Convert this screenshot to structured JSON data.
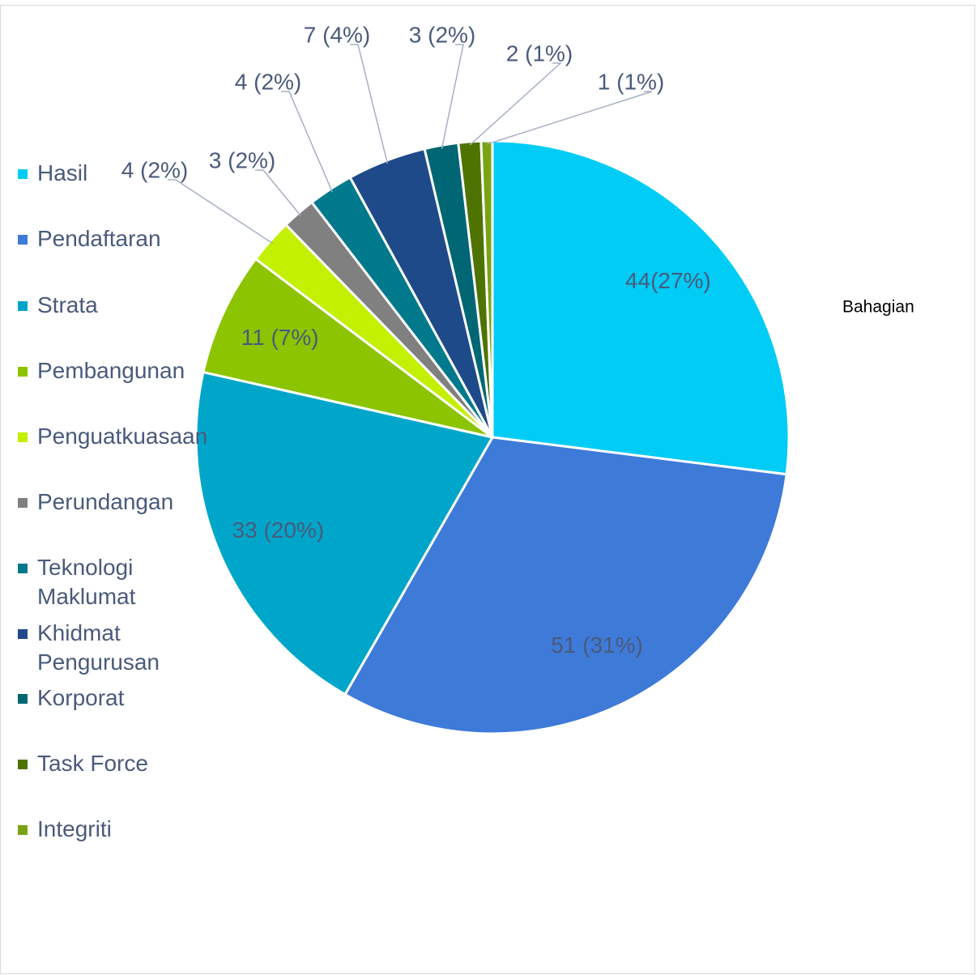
{
  "chart_data": {
    "type": "pie",
    "title": "Bahagian",
    "categories": [
      "Hasil",
      "Pendaftaran",
      "Strata",
      "Pembangunan",
      "Penguatkuasaan",
      "Perundangan",
      "Teknologi Maklumat",
      "Khidmat Pengurusan",
      "Korporat",
      "Task Force",
      "Integriti"
    ],
    "values": [
      44,
      51,
      33,
      11,
      4,
      3,
      4,
      7,
      3,
      2,
      1
    ],
    "value_labels": [
      "44(27%)",
      "51 (31%)",
      "33 (20%)",
      "11 (7%)",
      "4 (2%)",
      "3 (2%)",
      "4 (2%)",
      "7 (4%)",
      "3 (2%)",
      "2 (1%)",
      "1 (1%)"
    ],
    "colors": [
      "#00ccf5",
      "#3e7ad8",
      "#00a6c9",
      "#8cc400",
      "#c2f000",
      "#808080",
      "#00798c",
      "#1f4a8a",
      "#006673",
      "#4e7300",
      "#7aa314"
    ],
    "legend": "left"
  }
}
